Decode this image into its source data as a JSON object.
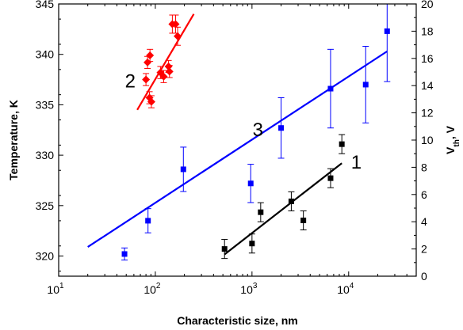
{
  "chart_data": {
    "type": "scatter",
    "title": "",
    "xlabel": "Characteristic size, nm",
    "ylabel_left": "Temperature, K",
    "ylabel_right": "V",
    "ylabel_right_sub": "th",
    "ylabel_right_suffix": ", V",
    "x_scale": "log",
    "xlim": [
      10,
      50000
    ],
    "ylim_left": [
      318,
      345
    ],
    "ylim_right": [
      0,
      20
    ],
    "x_ticks": [
      10,
      100,
      1000,
      10000
    ],
    "x_tick_labels": [
      {
        "base": "10",
        "exp": "1"
      },
      {
        "base": "10",
        "exp": "2"
      },
      {
        "base": "10",
        "exp": "3"
      },
      {
        "base": "10",
        "exp": "4"
      }
    ],
    "y_left_ticks": [
      320,
      325,
      330,
      335,
      340,
      345
    ],
    "y_right_ticks": [
      0,
      2,
      4,
      6,
      8,
      10,
      12,
      14,
      16,
      18,
      20
    ],
    "grid": false,
    "series": [
      {
        "label": "2",
        "axis": "left",
        "marker": "diamond",
        "color": "#ff0000",
        "points": [
          {
            "x": 80,
            "y": 337.5,
            "err": 0.6
          },
          {
            "x": 83,
            "y": 339.2,
            "err": 0.6
          },
          {
            "x": 88,
            "y": 339.9,
            "err": 0.6
          },
          {
            "x": 87,
            "y": 335.7,
            "err": 0.6
          },
          {
            "x": 91,
            "y": 335.3,
            "err": 0.6
          },
          {
            "x": 113,
            "y": 338.2,
            "err": 0.6
          },
          {
            "x": 122,
            "y": 337.8,
            "err": 0.6
          },
          {
            "x": 137,
            "y": 338.8,
            "err": 0.6
          },
          {
            "x": 140,
            "y": 338.3,
            "err": 0.6
          },
          {
            "x": 150,
            "y": 343.0,
            "err": 0.9
          },
          {
            "x": 162,
            "y": 343.0,
            "err": 0.9
          },
          {
            "x": 170,
            "y": 341.8,
            "err": 0.9
          }
        ],
        "fit": {
          "x": [
            65,
            250
          ],
          "y": [
            334.5,
            344.0
          ]
        }
      },
      {
        "label": "3",
        "axis": "left",
        "marker": "square",
        "color": "#0000ff",
        "points": [
          {
            "x": 48,
            "y": 320.2,
            "err": 0.6
          },
          {
            "x": 84,
            "y": 323.5,
            "err": 1.2
          },
          {
            "x": 195,
            "y": 328.6,
            "err": 2.2
          },
          {
            "x": 970,
            "y": 327.2,
            "err": 1.9
          },
          {
            "x": 2000,
            "y": 332.7,
            "err": 3.0
          },
          {
            "x": 6500,
            "y": 336.6,
            "err": 3.9
          },
          {
            "x": 15000,
            "y": 337.0,
            "err": 3.8
          },
          {
            "x": 25000,
            "y": 342.3,
            "err": 5.0
          }
        ],
        "fit": {
          "x": [
            20,
            25000
          ],
          "y": [
            320.9,
            340.3
          ]
        }
      },
      {
        "label": "1",
        "axis": "right",
        "marker": "square",
        "color": "#000000",
        "points": [
          {
            "x": 520,
            "y": 2.0,
            "err": 0.7
          },
          {
            "x": 1000,
            "y": 2.4,
            "err": 0.7
          },
          {
            "x": 1230,
            "y": 4.7,
            "err": 0.7
          },
          {
            "x": 2550,
            "y": 5.5,
            "err": 0.7
          },
          {
            "x": 3400,
            "y": 4.1,
            "err": 0.7
          },
          {
            "x": 6500,
            "y": 7.2,
            "err": 0.7
          },
          {
            "x": 8500,
            "y": 9.7,
            "err": 0.7
          }
        ],
        "fit": {
          "x": [
            520,
            8500
          ],
          "y": [
            1.6,
            8.3
          ]
        }
      }
    ],
    "annotations": [
      {
        "text": "2",
        "x": 55,
        "y": 336.7,
        "axis": "left"
      },
      {
        "text": "3",
        "x": 1150,
        "y": 331.9,
        "axis": "left"
      },
      {
        "text": "1",
        "x": 12000,
        "y": 7.9,
        "axis": "right"
      }
    ]
  }
}
